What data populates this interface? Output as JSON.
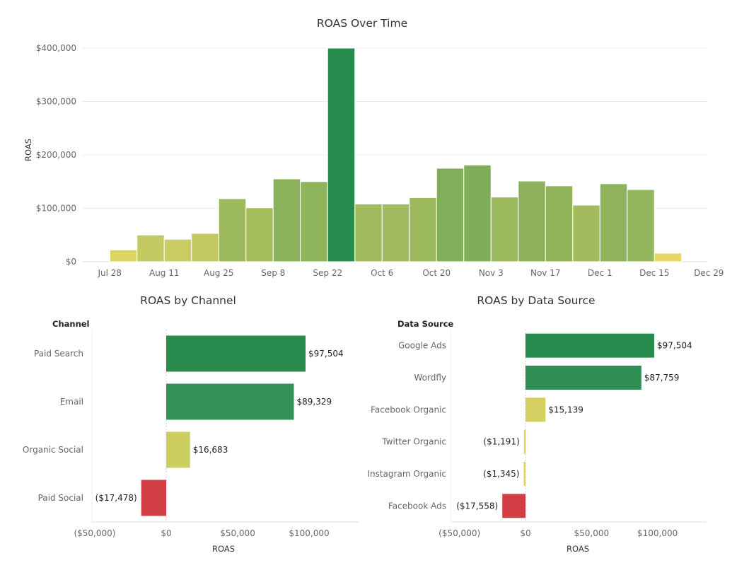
{
  "chart_data": [
    {
      "type": "bar",
      "title": "ROAS Over Time",
      "ylabel": "ROAS",
      "xlabel": "",
      "ylim": [
        0,
        400000
      ],
      "yticks": [
        "$0",
        "$100,000",
        "$200,000",
        "$300,000",
        "$400,000"
      ],
      "yticks_values": [
        0,
        100000,
        200000,
        300000,
        400000
      ],
      "xticks": [
        "Jul 28",
        "Aug 11",
        "Aug 25",
        "Sep 8",
        "Sep 22",
        "Oct 6",
        "Oct 20",
        "Nov 3",
        "Nov 17",
        "Dec 1",
        "Dec 15",
        "Dec 29"
      ],
      "weeks": [
        "2024-07-28",
        "2024-08-04",
        "2024-08-11",
        "2024-08-18",
        "2024-08-25",
        "2024-09-01",
        "2024-09-08",
        "2024-09-15",
        "2024-09-22",
        "2024-09-29",
        "2024-10-06",
        "2024-10-13",
        "2024-10-20",
        "2024-10-27",
        "2024-11-03",
        "2024-11-10",
        "2024-11-17",
        "2024-11-24",
        "2024-12-01",
        "2024-12-08",
        "2024-12-15"
      ],
      "values": [
        22000,
        50000,
        42000,
        53000,
        118000,
        101000,
        155000,
        150000,
        400000,
        108000,
        108000,
        120000,
        175000,
        181000,
        121000,
        151000,
        142000,
        106000,
        146000,
        135000,
        16000
      ],
      "grid": true,
      "color_scale": [
        "#e8d766",
        "#2a8b4f"
      ]
    },
    {
      "type": "bar",
      "orientation": "horizontal",
      "title": "ROAS by Channel",
      "category_header": "Channel",
      "xlabel": "ROAS",
      "xlim": [
        -55000,
        140000
      ],
      "xticks": [
        "($50,000)",
        "$0",
        "$50,000",
        "$100,000"
      ],
      "xticks_values": [
        -50000,
        0,
        50000,
        100000
      ],
      "categories": [
        "Paid Search",
        "Email",
        "Organic Social",
        "Paid Social"
      ],
      "values": [
        97504,
        89329,
        16683,
        -17478
      ],
      "labels": [
        "$97,504",
        "$89,329",
        "$16,683",
        "($17,478)"
      ],
      "colors": [
        "#2a8b4f",
        "#36905a",
        "#cccf5f",
        "#d13f45"
      ]
    },
    {
      "type": "bar",
      "orientation": "horizontal",
      "title": "ROAS by Data Source",
      "category_header": "Data Source",
      "xlabel": "ROAS",
      "xlim": [
        -55000,
        135000
      ],
      "xticks": [
        "($50,000)",
        "$0",
        "$50,000",
        "$100,000"
      ],
      "xticks_values": [
        -50000,
        0,
        50000,
        100000
      ],
      "categories": [
        "Google Ads",
        "Wordfly",
        "Facebook Organic",
        "Twitter Organic",
        "Instagram Organic",
        "Facebook Ads"
      ],
      "values": [
        97504,
        87759,
        15139,
        -1191,
        -1345,
        -17558
      ],
      "labels": [
        "$97,504",
        "$87,759",
        "$15,139",
        "($1,191)",
        "($1,345)",
        "($17,558)"
      ],
      "colors": [
        "#2a8b4f",
        "#2f8e53",
        "#d3cf60",
        "#e4cf68",
        "#e4cf68",
        "#d13f45"
      ]
    }
  ]
}
